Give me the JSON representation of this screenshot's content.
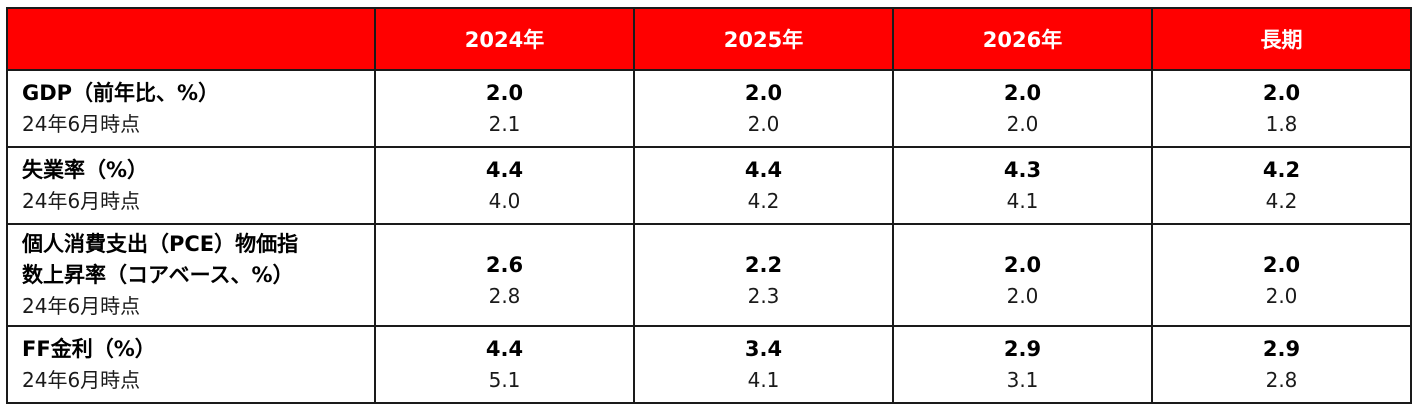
{
  "table": {
    "columns": [
      "",
      "2024年",
      "2025年",
      "2026年",
      "長期"
    ],
    "rows": [
      {
        "title": "GDP（前年比、%）",
        "title_line2": "",
        "note": "24年6月時点",
        "current": [
          "2.0",
          "2.0",
          "2.0",
          "2.0"
        ],
        "previous": [
          "2.1",
          "2.0",
          "2.0",
          "1.8"
        ]
      },
      {
        "title": "失業率（%）",
        "title_line2": "",
        "note": "24年6月時点",
        "current": [
          "4.4",
          "4.4",
          "4.3",
          "4.2"
        ],
        "previous": [
          "4.0",
          "4.2",
          "4.1",
          "4.2"
        ]
      },
      {
        "title": "個人消費支出（PCE）物価指",
        "title_line2": "数上昇率（コアベース、%）",
        "note": "24年6月時点",
        "current": [
          "2.6",
          "2.2",
          "2.0",
          "2.0"
        ],
        "previous": [
          "2.8",
          "2.3",
          "2.0",
          "2.0"
        ]
      },
      {
        "title": "FF金利（%）",
        "title_line2": "",
        "note": "24年6月時点",
        "current": [
          "4.4",
          "3.4",
          "2.9",
          "2.9"
        ],
        "previous": [
          "5.1",
          "4.1",
          "3.1",
          "2.8"
        ]
      }
    ]
  },
  "colors": {
    "header_bg": "#ff0000",
    "header_text": "#ffffff",
    "border": "#1a1a1a"
  }
}
